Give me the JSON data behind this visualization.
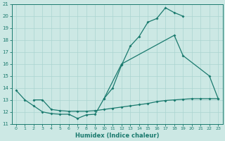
{
  "xlabel": "Humidex (Indice chaleur)",
  "bg_color": "#cce8e4",
  "grid_color": "#aad4d0",
  "line_color": "#1a7a6e",
  "xlim": [
    -0.5,
    23.5
  ],
  "ylim": [
    11,
    21
  ],
  "xticks": [
    0,
    1,
    2,
    3,
    4,
    5,
    6,
    7,
    8,
    9,
    10,
    11,
    12,
    13,
    14,
    15,
    16,
    17,
    18,
    19,
    20,
    21,
    22,
    23
  ],
  "yticks": [
    11,
    12,
    13,
    14,
    15,
    16,
    17,
    18,
    19,
    20,
    21
  ],
  "curve1_x": [
    0,
    1,
    2,
    3,
    4,
    5,
    6,
    7,
    8,
    9,
    10,
    11,
    12,
    13,
    14,
    15,
    16,
    17,
    18,
    19
  ],
  "curve1_y": [
    13.8,
    13.0,
    12.5,
    12.0,
    11.85,
    11.8,
    11.8,
    11.45,
    11.75,
    11.8,
    13.1,
    14.0,
    15.9,
    17.5,
    18.3,
    19.5,
    19.8,
    20.7,
    20.3,
    20.0
  ],
  "curve2_x": [
    10,
    12,
    18,
    19,
    22,
    23
  ],
  "curve2_y": [
    13.1,
    16.0,
    18.4,
    16.7,
    15.0,
    13.1
  ],
  "curve3_x": [
    2,
    3,
    4,
    5,
    6,
    7,
    8,
    9,
    10,
    11,
    12,
    13,
    14,
    15,
    16,
    17,
    18,
    19,
    20,
    21,
    22,
    23
  ],
  "curve3_y": [
    13.0,
    13.0,
    12.2,
    12.1,
    12.05,
    12.05,
    12.05,
    12.1,
    12.2,
    12.3,
    12.4,
    12.5,
    12.6,
    12.7,
    12.85,
    12.95,
    13.0,
    13.05,
    13.1,
    13.1,
    13.1,
    13.1
  ]
}
